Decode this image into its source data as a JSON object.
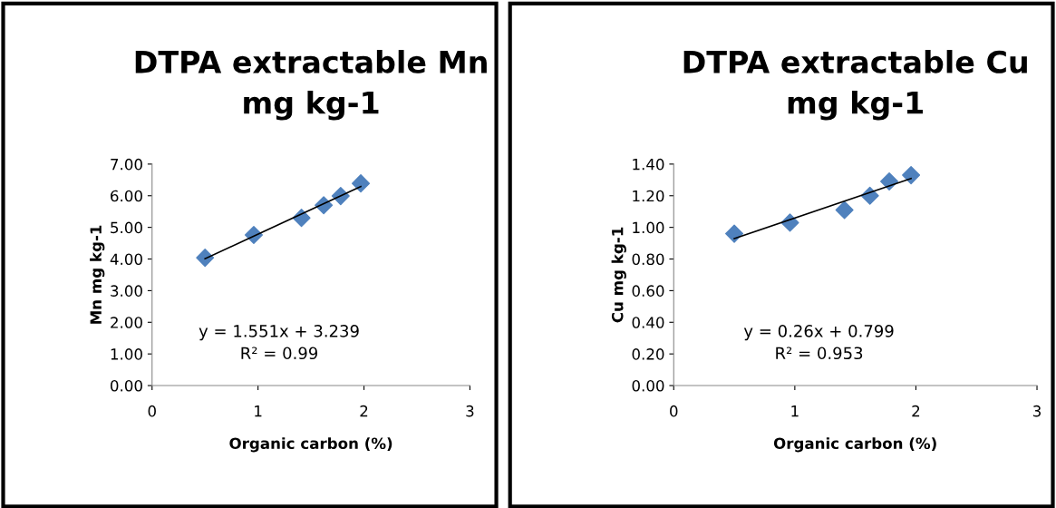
{
  "chart_data": [
    {
      "type": "scatter",
      "title": "DTPA extractable Mn\nmg kg-1",
      "xlabel": "Organic carbon (%)",
      "ylabel": "Mn mg kg-1",
      "marker": "diamond",
      "grid": false,
      "legend": false,
      "xlim": [
        0,
        3
      ],
      "xticks": [
        0,
        1,
        2,
        3
      ],
      "ylim": [
        0,
        7
      ],
      "yticks": [
        {
          "value": 0,
          "label": "0.00"
        },
        {
          "value": 1,
          "label": "1.00"
        },
        {
          "value": 2,
          "label": "2.00"
        },
        {
          "value": 3,
          "label": "3.00"
        },
        {
          "value": 4,
          "label": "4.00"
        },
        {
          "value": 5,
          "label": "5.00"
        },
        {
          "value": 6,
          "label": "6.00"
        },
        {
          "value": 7,
          "label": "7.00"
        }
      ],
      "series": [
        {
          "color": "#4f81bd",
          "x": [
            0.5,
            0.96,
            1.41,
            1.62,
            1.78,
            1.97
          ],
          "values": [
            4.04,
            4.76,
            5.3,
            5.7,
            5.99,
            6.39
          ]
        },
        {
          "type": "line",
          "color": "#000000",
          "marker": "none",
          "x": [
            0.5,
            1.97
          ],
          "values": [
            4.01,
            6.29
          ]
        }
      ],
      "annotations": [
        "y = 1.551x + 3.239",
        "R² = 0.99"
      ]
    },
    {
      "type": "scatter",
      "title": "DTPA extractable Cu\nmg kg-1",
      "xlabel": "Organic carbon (%)",
      "ylabel": "Cu mg kg-1",
      "marker": "diamond",
      "grid": false,
      "legend": false,
      "xlim": [
        0,
        3
      ],
      "xticks": [
        0,
        1,
        2,
        3
      ],
      "ylim": [
        0,
        1.4
      ],
      "yticks": [
        {
          "value": 0,
          "label": "0.00"
        },
        {
          "value": 0.2,
          "label": "0.20"
        },
        {
          "value": 0.4,
          "label": "0.40"
        },
        {
          "value": 0.6,
          "label": "0.60"
        },
        {
          "value": 0.8,
          "label": "0.80"
        },
        {
          "value": 1.0,
          "label": "1.00"
        },
        {
          "value": 1.2,
          "label": "1.20"
        },
        {
          "value": 1.4,
          "label": "1.40"
        }
      ],
      "series": [
        {
          "color": "#4f81bd",
          "x": [
            0.5,
            0.96,
            1.41,
            1.62,
            1.78,
            1.96
          ],
          "values": [
            0.96,
            1.03,
            1.11,
            1.2,
            1.29,
            1.33
          ]
        },
        {
          "type": "line",
          "color": "#000000",
          "marker": "none",
          "x": [
            0.5,
            1.96
          ],
          "values": [
            0.929,
            1.309
          ]
        }
      ],
      "annotations": [
        "y = 0.26x + 0.799",
        "R² = 0.953"
      ]
    }
  ]
}
